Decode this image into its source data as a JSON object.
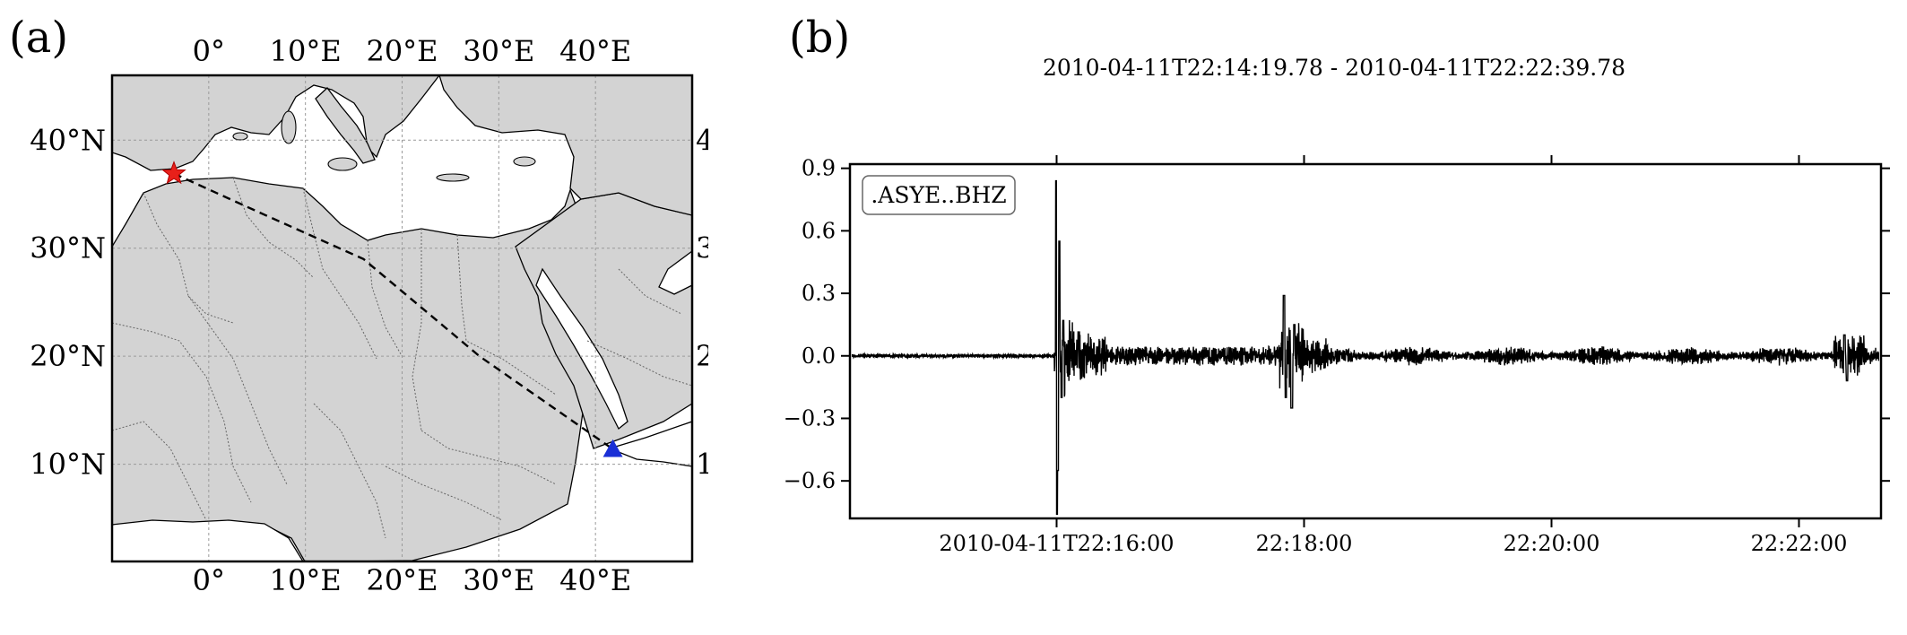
{
  "panel_a": {
    "label": "(a)",
    "lon_ticks": [
      "0°",
      "10°E",
      "20°E",
      "30°E",
      "40°E"
    ],
    "lat_ticks": [
      "40°N",
      "30°N",
      "20°N",
      "10°N"
    ],
    "lon_values": [
      0,
      10,
      20,
      30,
      40
    ],
    "lat_values": [
      40,
      30,
      20,
      10
    ],
    "lon_range": [
      -10,
      50
    ],
    "lat_range": [
      1,
      46
    ],
    "event": {
      "lon": -3.6,
      "lat": 36.9,
      "marker": "star",
      "color": "#e8201a"
    },
    "station": {
      "lon": 41.8,
      "lat": 11.4,
      "marker": "triangle",
      "color": "#1a2fd6"
    },
    "path_points": [
      [
        -3.6,
        36.9
      ],
      [
        6,
        33
      ],
      [
        16,
        29
      ],
      [
        28,
        20
      ],
      [
        41.8,
        11.4
      ]
    ],
    "land_color": "#d3d3d3",
    "sea_color": "#ffffff"
  },
  "panel_b": {
    "label": "(b)",
    "title": "2010-04-11T22:14:19.78 - 2010-04-11T22:22:39.78",
    "trace_label": ".ASYE..BHZ",
    "x_tick_labels": [
      "2010-04-11T22:16:00",
      "22:18:00",
      "22:20:00",
      "22:22:00"
    ],
    "y_tick_labels": [
      "0.9",
      "0.6",
      "0.3",
      "0.0",
      "−0.3",
      "−0.6"
    ],
    "y_tick_values": [
      0.9,
      0.6,
      0.3,
      0.0,
      -0.3,
      -0.6
    ]
  },
  "chart_data": {
    "type": "line",
    "title": "2010-04-11T22:14:19.78 - 2010-04-11T22:22:39.78",
    "series": [
      {
        "name": ".ASYE..BHZ"
      }
    ],
    "x_range_seconds_after_start": [
      0,
      500
    ],
    "ylim": [
      -0.78,
      0.92
    ],
    "features": [
      {
        "t": 100.2,
        "amplitude_min": -0.76,
        "amplitude_max": 0.84
      },
      {
        "t": 211.0,
        "amplitude_min": -0.25,
        "amplitude_max": 0.29
      },
      {
        "t": 483.0,
        "amplitude_min": -0.12,
        "amplitude_max": 0.1
      }
    ]
  }
}
